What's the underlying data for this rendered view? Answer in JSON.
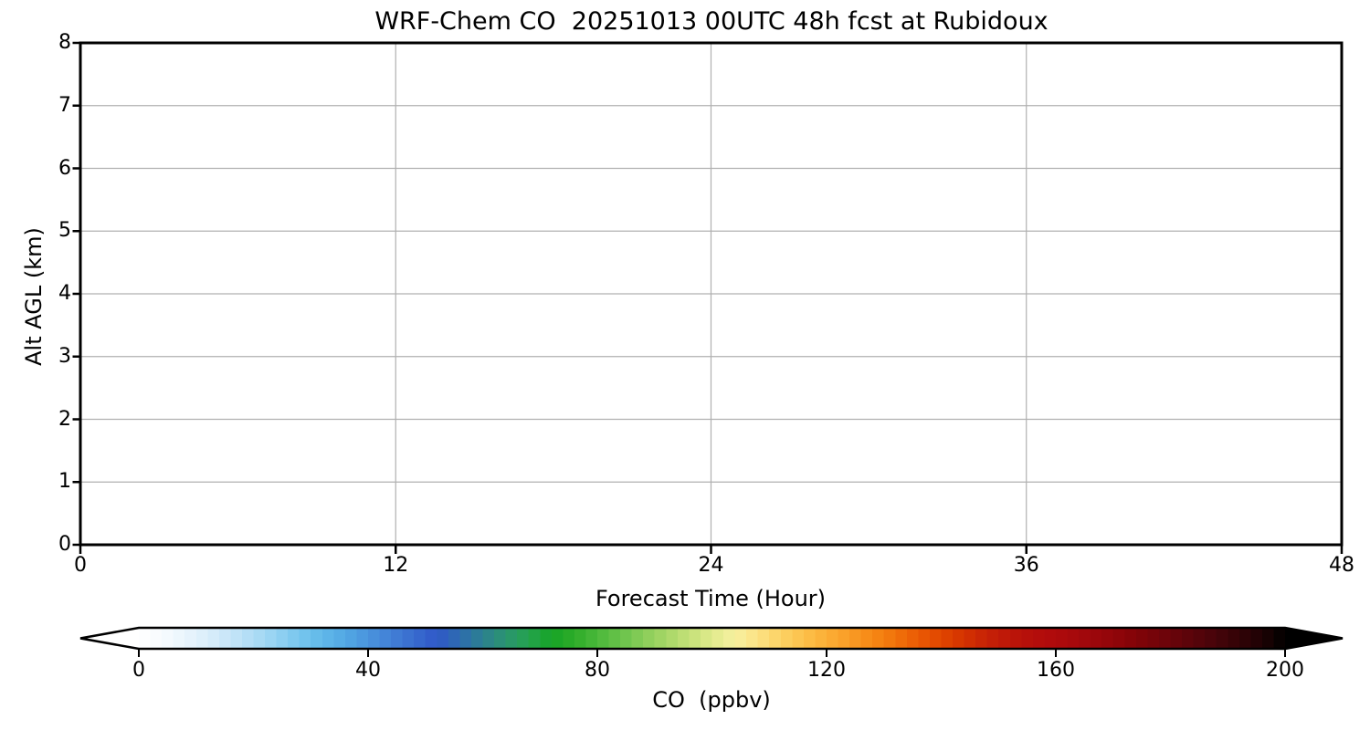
{
  "chart_data": {
    "type": "heatmap",
    "title": "WRF-Chem CO  20251013 00UTC 48h fcst at Rubidoux",
    "xlabel": "Forecast Time (Hour)",
    "ylabel": "Alt AGL (km)",
    "xlim": [
      0,
      48
    ],
    "ylim": [
      0,
      8
    ],
    "xticks": [
      0,
      12,
      24,
      36,
      48
    ],
    "yticks": [
      0,
      1,
      2,
      3,
      4,
      5,
      6,
      7,
      8
    ],
    "grid": true,
    "grid_color": "#b0b0b0",
    "plot_background": "#ffffff",
    "spine_color": "#000000",
    "values": [],
    "colorbar": {
      "label": "CO  (ppbv)",
      "orientation": "horizontal",
      "range": [
        0,
        200
      ],
      "ticks": [
        0,
        40,
        80,
        120,
        160,
        200
      ],
      "segment_step": 2,
      "extend": "both",
      "under_color": "#ffffff",
      "over_color": "#000000",
      "stops": [
        [
          0,
          "#ffffff"
        ],
        [
          4,
          "#f7fbfe"
        ],
        [
          8,
          "#eaf5fc"
        ],
        [
          12,
          "#daeefa"
        ],
        [
          16,
          "#c6e5f8"
        ],
        [
          20,
          "#aedcf5"
        ],
        [
          24,
          "#94d2f2"
        ],
        [
          28,
          "#78c6ee"
        ],
        [
          32,
          "#60b8e9"
        ],
        [
          36,
          "#52a8e3"
        ],
        [
          40,
          "#4a94dd"
        ],
        [
          44,
          "#4280d6"
        ],
        [
          48,
          "#386cce"
        ],
        [
          52,
          "#3058c8"
        ],
        [
          56,
          "#2d6cae"
        ],
        [
          60,
          "#2c8090"
        ],
        [
          64,
          "#2b9470"
        ],
        [
          68,
          "#24a24e"
        ],
        [
          72,
          "#16a426"
        ],
        [
          76,
          "#2eac28"
        ],
        [
          80,
          "#4ab83a"
        ],
        [
          84,
          "#68c24a"
        ],
        [
          88,
          "#88cc58"
        ],
        [
          92,
          "#a6d666"
        ],
        [
          96,
          "#c4e078"
        ],
        [
          100,
          "#e0ea8c"
        ],
        [
          104,
          "#f6f0a0"
        ],
        [
          108,
          "#fce284"
        ],
        [
          112,
          "#fcd264"
        ],
        [
          116,
          "#fcc04a"
        ],
        [
          120,
          "#fbae36"
        ],
        [
          124,
          "#f99c26"
        ],
        [
          128,
          "#f68814"
        ],
        [
          132,
          "#f1720a"
        ],
        [
          136,
          "#ea5a04"
        ],
        [
          140,
          "#e04600"
        ],
        [
          144,
          "#d43200"
        ],
        [
          148,
          "#c62206"
        ],
        [
          152,
          "#bc1608"
        ],
        [
          156,
          "#b40e0a"
        ],
        [
          160,
          "#ae0a0c"
        ],
        [
          164,
          "#a4080c"
        ],
        [
          168,
          "#98060a"
        ],
        [
          172,
          "#8a0408"
        ],
        [
          176,
          "#7a0408"
        ],
        [
          180,
          "#6a040a"
        ],
        [
          184,
          "#58040a"
        ],
        [
          188,
          "#46040a"
        ],
        [
          192,
          "#320306"
        ],
        [
          196,
          "#1e0204"
        ],
        [
          200,
          "#000000"
        ]
      ]
    }
  }
}
